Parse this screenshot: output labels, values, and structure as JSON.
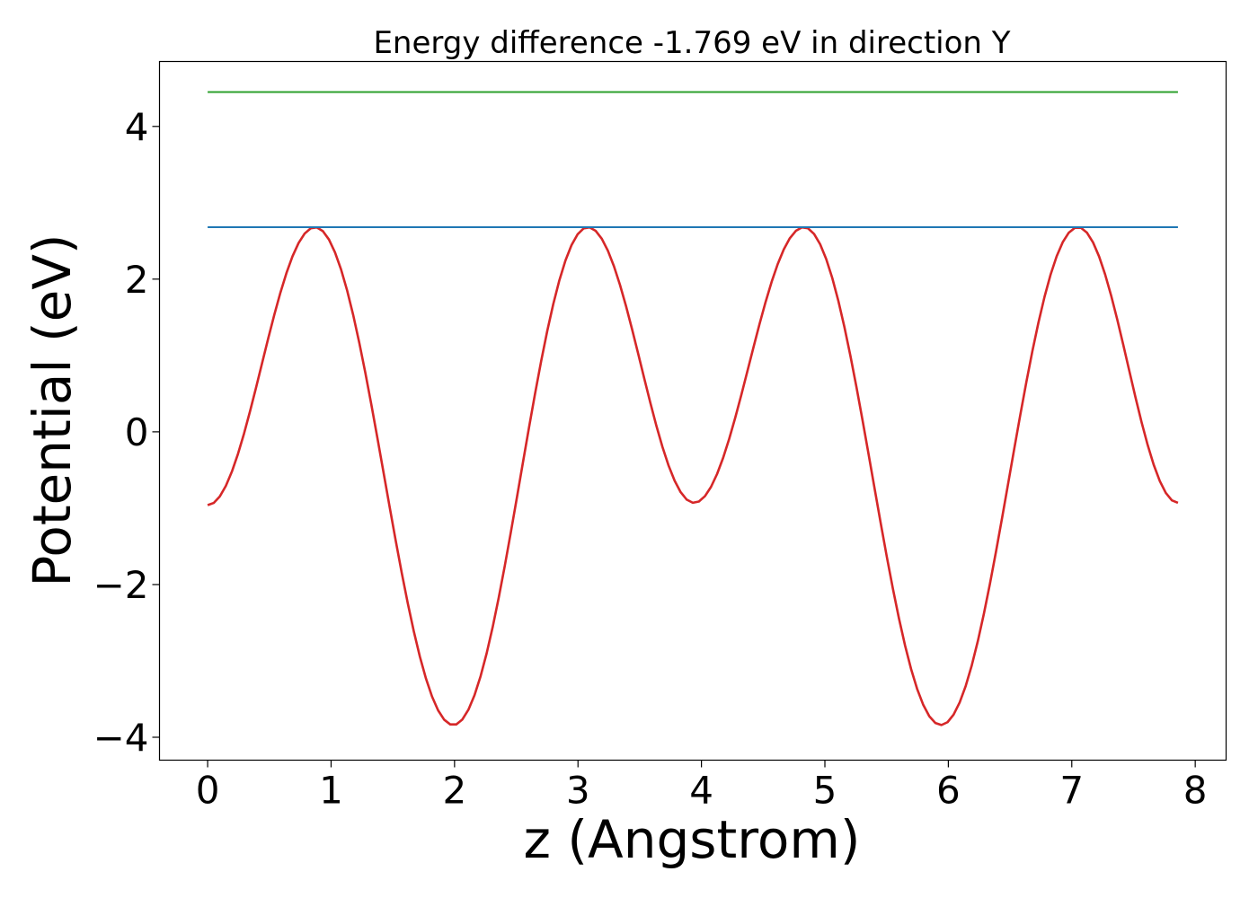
{
  "chart_data": {
    "type": "line",
    "title": "Energy difference -1.769 eV in direction Y",
    "xlabel": "z (Angstrom)",
    "ylabel": "Potential (eV)",
    "xlim": [
      -0.39,
      8.25
    ],
    "ylim": [
      -4.3,
      4.85
    ],
    "xticks": [
      0,
      1,
      2,
      3,
      4,
      5,
      6,
      7,
      8
    ],
    "xtick_labels": [
      "0",
      "1",
      "2",
      "3",
      "4",
      "5",
      "6",
      "7",
      "8"
    ],
    "yticks": [
      -4,
      -2,
      0,
      2,
      4
    ],
    "ytick_labels": [
      "−4",
      "−2",
      "0",
      "2",
      "4"
    ],
    "grid": false,
    "legend": "none",
    "series": [
      {
        "color": "#d62728",
        "x_range": [
          0,
          7.86
        ],
        "samples": 160,
        "peaks": [
          0.87,
          3.08,
          4.83,
          7.05
        ],
        "minima": [
          {
            "x": 0,
            "y": -0.96
          },
          {
            "x": 1.99,
            "y": -3.84
          },
          {
            "x": 3.94,
            "y": -0.93
          },
          {
            "x": 5.94,
            "y": -3.84
          },
          {
            "x": 7.86,
            "y": -0.93
          }
        ],
        "peak_value": 2.68
      },
      {
        "color": "#1f77b4",
        "x": [
          0,
          7.86
        ],
        "y": [
          2.68,
          2.68
        ]
      },
      {
        "color": "#2ca02c",
        "x": [
          0,
          7.86
        ],
        "y": [
          4.45,
          4.45
        ]
      }
    ]
  }
}
